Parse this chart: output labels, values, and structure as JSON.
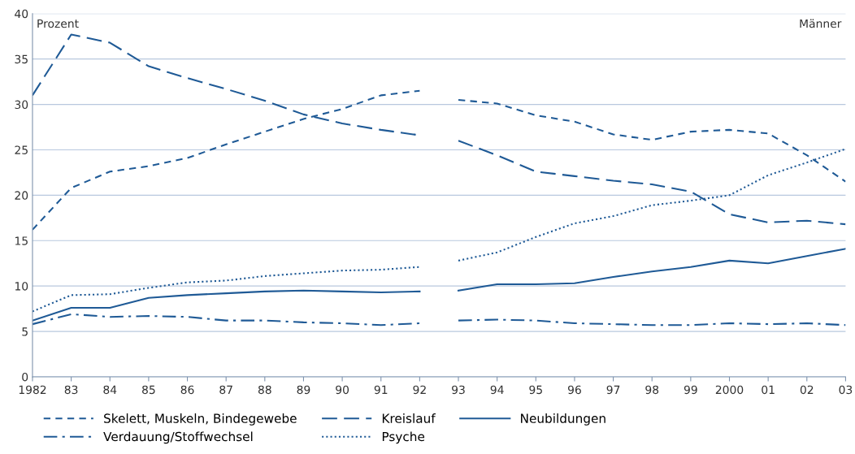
{
  "chart_data": {
    "type": "line",
    "x": [
      1982,
      1983,
      1984,
      1985,
      1986,
      1987,
      1988,
      1989,
      1990,
      1991,
      1992,
      1992.5,
      1993,
      1994,
      1995,
      1996,
      1997,
      1998,
      1999,
      2000,
      2001,
      2002,
      2003
    ],
    "series": [
      {
        "name": "Skelett, Muskeln, Bindegewebe",
        "color": "#1f5a96",
        "line_style": "dashed",
        "values": [
          16.2,
          20.8,
          22.6,
          23.2,
          24.1,
          25.6,
          27.0,
          28.4,
          29.5,
          31.0,
          31.5,
          null,
          30.5,
          30.1,
          28.8,
          28.1,
          26.7,
          26.1,
          27.0,
          27.2,
          26.8,
          24.4,
          21.5
        ]
      },
      {
        "name": "Kreislauf",
        "color": "#1f5a96",
        "line_style": "longdash",
        "values": [
          31.0,
          37.7,
          36.8,
          34.2,
          32.9,
          31.7,
          30.4,
          28.9,
          27.9,
          27.2,
          26.6,
          null,
          26.0,
          24.4,
          22.6,
          22.1,
          21.6,
          21.2,
          20.4,
          17.9,
          17.0,
          17.2,
          16.8
        ]
      },
      {
        "name": "Neubildungen",
        "color": "#1f5a96",
        "line_style": "solid",
        "values": [
          6.2,
          7.6,
          7.6,
          8.7,
          9.0,
          9.2,
          9.4,
          9.5,
          9.4,
          9.3,
          9.4,
          null,
          9.5,
          10.2,
          10.2,
          10.3,
          11.0,
          11.6,
          12.1,
          12.8,
          12.5,
          13.3,
          14.1
        ]
      },
      {
        "name": "Verdauung/Stoffwechsel",
        "color": "#1f5a96",
        "line_style": "dashdot",
        "values": [
          5.8,
          6.9,
          6.6,
          6.7,
          6.6,
          6.2,
          6.2,
          6.0,
          5.9,
          5.7,
          5.9,
          null,
          6.2,
          6.3,
          6.2,
          5.9,
          5.8,
          5.7,
          5.7,
          5.9,
          5.8,
          5.9,
          5.7
        ]
      },
      {
        "name": "Psyche",
        "color": "#1f5a96",
        "line_style": "dotted",
        "values": [
          7.2,
          9.0,
          9.1,
          9.8,
          10.4,
          10.6,
          11.1,
          11.4,
          11.7,
          11.8,
          12.1,
          null,
          12.8,
          13.7,
          15.4,
          16.9,
          17.7,
          18.9,
          19.4,
          20.0,
          22.2,
          23.6,
          25.1
        ]
      }
    ],
    "xlim": [
      1982,
      2003
    ],
    "xticks": [
      1982,
      {
        "value": 1983,
        "label": "83"
      },
      {
        "value": 1984,
        "label": "84"
      },
      {
        "value": 1985,
        "label": "85"
      },
      {
        "value": 1986,
        "label": "86"
      },
      {
        "value": 1987,
        "label": "87"
      },
      {
        "value": 1988,
        "label": "88"
      },
      {
        "value": 1989,
        "label": "89"
      },
      {
        "value": 1990,
        "label": "90"
      },
      {
        "value": 1991,
        "label": "91"
      },
      {
        "value": 1992,
        "label": "92"
      },
      {
        "value": 1993,
        "label": "93"
      },
      {
        "value": 1994,
        "label": "94"
      },
      {
        "value": 1995,
        "label": "95"
      },
      {
        "value": 1996,
        "label": "96"
      },
      {
        "value": 1997,
        "label": "97"
      },
      {
        "value": 1998,
        "label": "98"
      },
      {
        "value": 1999,
        "label": "99"
      },
      2000,
      {
        "value": 2001,
        "label": "01"
      },
      {
        "value": 2002,
        "label": "02"
      },
      {
        "value": 2003,
        "label": "03"
      }
    ],
    "ylim": [
      0,
      40
    ],
    "yticks": [
      0,
      5,
      10,
      15,
      20,
      25,
      30,
      35,
      40
    ],
    "grid": "y",
    "legend": "bottom",
    "marker": "none",
    "annotations": [
      "Prozent",
      "Männer"
    ]
  }
}
